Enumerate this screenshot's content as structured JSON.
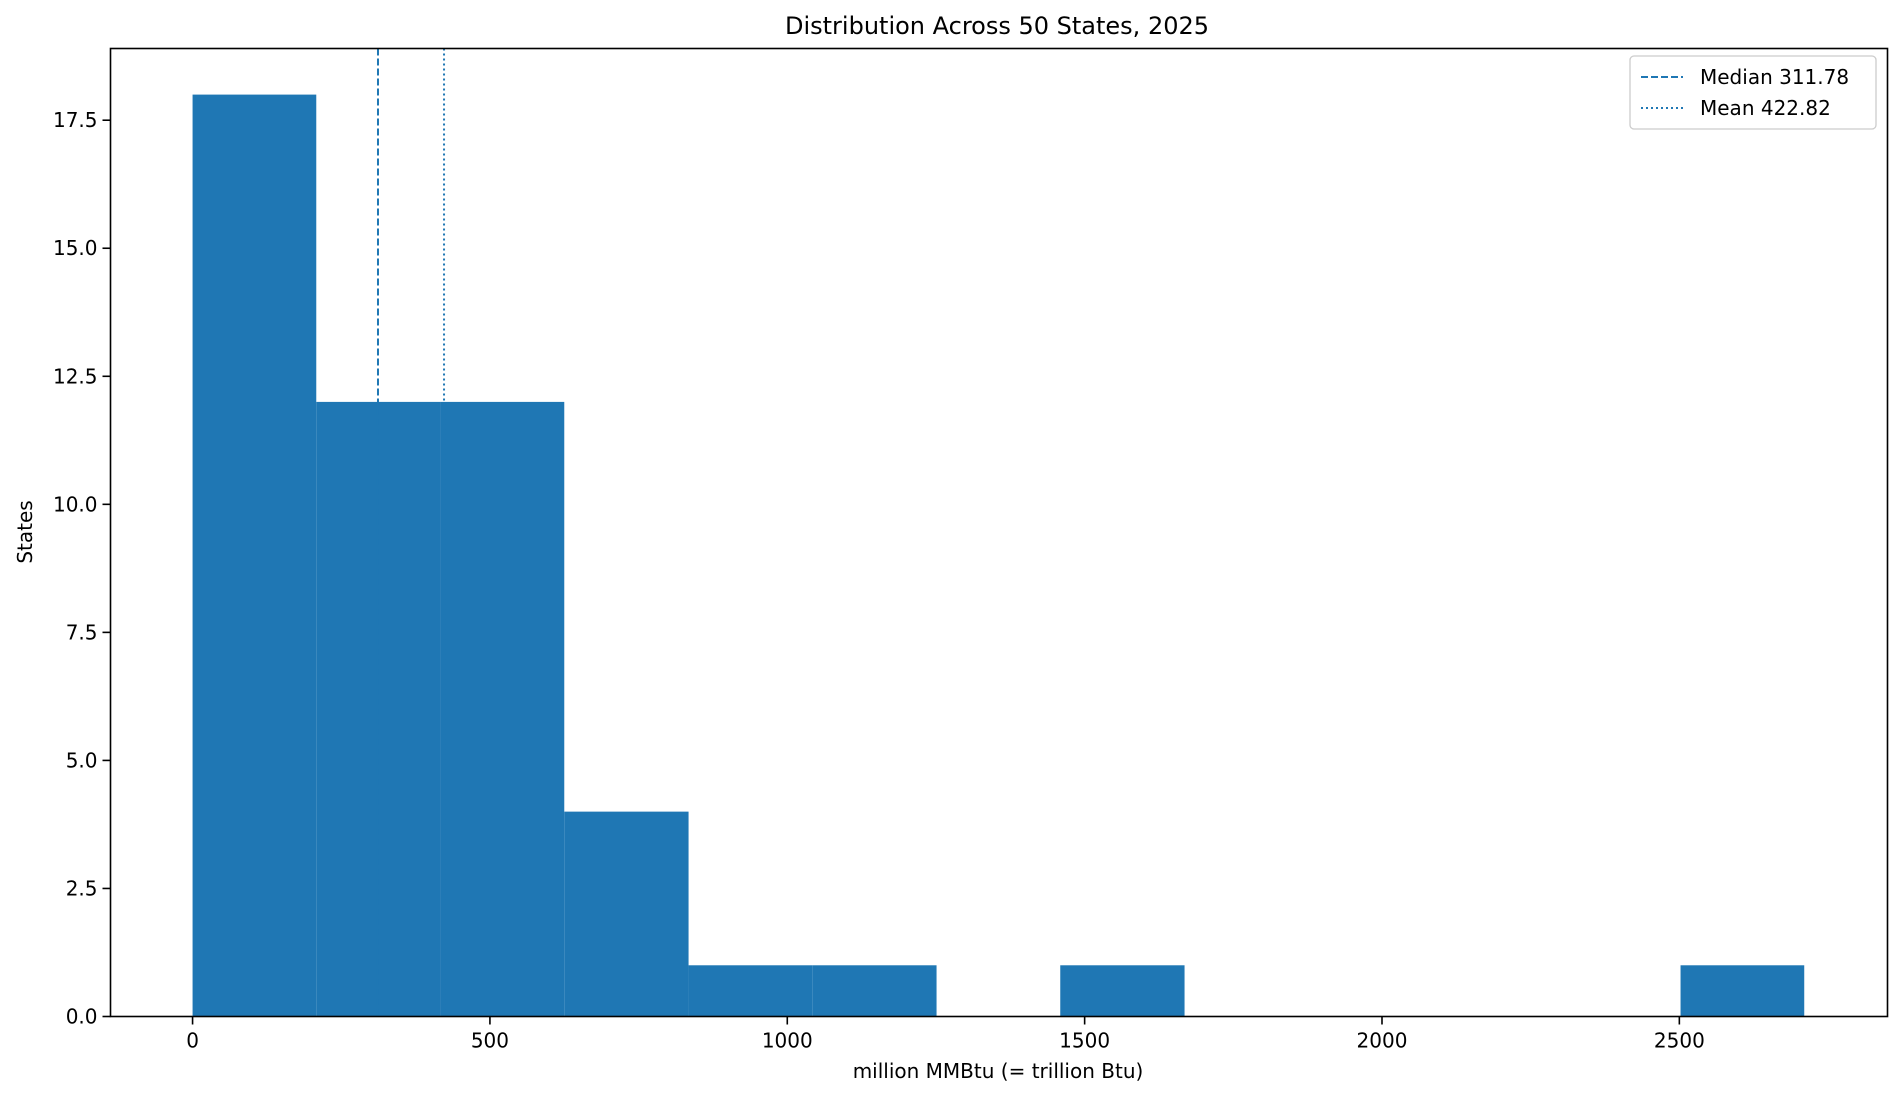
{
  "chart_data": {
    "type": "bar",
    "title": "Distribution Across 50 States, 2025",
    "xlabel": "million MMBtu (= trillion Btu)",
    "ylabel": "States",
    "xlim": [
      -138,
      2850
    ],
    "ylim": [
      0,
      18.9
    ],
    "bar_color": "#1f77b4",
    "bins": [
      {
        "x0": 0,
        "x1": 208,
        "count": 18
      },
      {
        "x0": 208,
        "x1": 417,
        "count": 12
      },
      {
        "x0": 417,
        "x1": 625,
        "count": 12
      },
      {
        "x0": 625,
        "x1": 834,
        "count": 4
      },
      {
        "x0": 834,
        "x1": 1042,
        "count": 1
      },
      {
        "x0": 1042,
        "x1": 1251,
        "count": 1
      },
      {
        "x0": 1251,
        "x1": 1459,
        "count": 0
      },
      {
        "x0": 1459,
        "x1": 1668,
        "count": 1
      },
      {
        "x0": 1668,
        "x1": 1876,
        "count": 0
      },
      {
        "x0": 1876,
        "x1": 2085,
        "count": 0
      },
      {
        "x0": 2085,
        "x1": 2293,
        "count": 0
      },
      {
        "x0": 2293,
        "x1": 2502,
        "count": 0
      },
      {
        "x0": 2502,
        "x1": 2710,
        "count": 1
      }
    ],
    "x_ticks": [
      0,
      500,
      1000,
      1500,
      2000,
      2500
    ],
    "x_tick_labels": [
      "0",
      "500",
      "1000",
      "1500",
      "2000",
      "2500"
    ],
    "y_ticks": [
      0,
      2.5,
      5,
      7.5,
      10,
      12.5,
      15,
      17.5
    ],
    "y_tick_labels": [
      "0.0",
      "2.5",
      "5.0",
      "7.5",
      "10.0",
      "12.5",
      "15.0",
      "17.5"
    ],
    "reference_lines": [
      {
        "label": "Median 311.78",
        "value": 311.78,
        "style": "dashed"
      },
      {
        "label": "Mean 422.82",
        "value": 422.82,
        "style": "dotted"
      }
    ],
    "legend": {
      "position": "top-right"
    },
    "grid": false
  }
}
